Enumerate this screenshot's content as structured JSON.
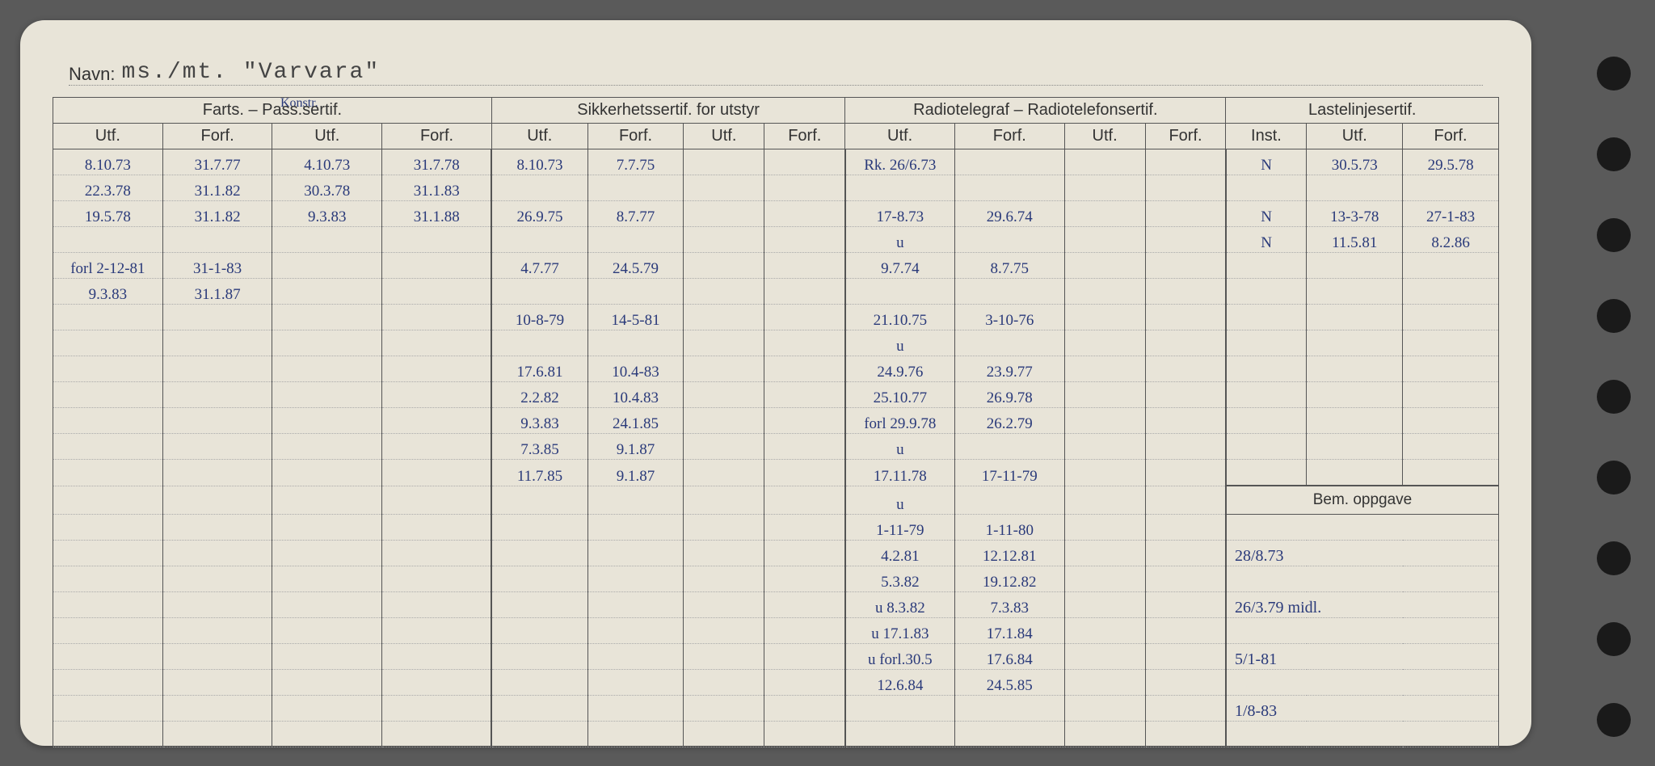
{
  "navn_label": "Navn:",
  "navn_value": "ms./mt. \"Varvara\"",
  "annotation_konstr": "Konstr.",
  "groups": {
    "farts": "Farts. – Pass.sertif.",
    "sikkerhet": "Sikkerhetssertif. for utstyr",
    "radio": "Radiotelegraf – Radiotelefonsertif.",
    "laste": "Lastelinjesertif."
  },
  "sub": {
    "utf": "Utf.",
    "forf": "Forf.",
    "inst": "Inst."
  },
  "bem_label": "Bem. oppgave",
  "rows": [
    {
      "c0": "8.10.73",
      "c1": "31.7.77",
      "c2": "4.10.73",
      "c3": "31.7.78",
      "c4": "8.10.73",
      "c5": "7.7.75",
      "c6": "",
      "c7": "",
      "c8": "Rk. 26/6.73",
      "c9": "",
      "c10": "",
      "c11": "",
      "c12": "N",
      "c13": "30.5.73",
      "c14": "29.5.78"
    },
    {
      "c0": "22.3.78",
      "c1": "31.1.82",
      "c2": "30.3.78",
      "c3": "31.1.83",
      "c4": "",
      "c5": "",
      "c6": "",
      "c7": "",
      "c8": "",
      "c9": "",
      "c10": "",
      "c11": "",
      "c12": "",
      "c13": "",
      "c14": ""
    },
    {
      "c0": "19.5.78",
      "c1": "31.1.82",
      "c2": "9.3.83",
      "c3": "31.1.88",
      "c4": "26.9.75",
      "c5": "8.7.77",
      "c6": "",
      "c7": "",
      "c8": "17-8.73",
      "c9": "29.6.74",
      "c10": "",
      "c11": "",
      "c12": "N",
      "c13": "13-3-78",
      "c14": "27-1-83"
    },
    {
      "c0": "",
      "c1": "",
      "c2": "",
      "c3": "",
      "c4": "",
      "c5": "",
      "c6": "",
      "c7": "",
      "c8": "u",
      "c9": "",
      "c10": "",
      "c11": "",
      "c12": "N",
      "c13": "11.5.81",
      "c14": "8.2.86"
    },
    {
      "c0": "forl 2-12-81",
      "c1": "31-1-83",
      "c2": "",
      "c3": "",
      "c4": "4.7.77",
      "c5": "24.5.79",
      "c6": "",
      "c7": "",
      "c8": "9.7.74",
      "c9": "8.7.75",
      "c10": "",
      "c11": "",
      "c12": "",
      "c13": "",
      "c14": ""
    },
    {
      "c0": "9.3.83",
      "c1": "31.1.87",
      "c2": "",
      "c3": "",
      "c4": "",
      "c5": "",
      "c6": "",
      "c7": "",
      "c8": "",
      "c9": "",
      "c10": "",
      "c11": "",
      "c12": "",
      "c13": "",
      "c14": ""
    },
    {
      "c0": "",
      "c1": "",
      "c2": "",
      "c3": "",
      "c4": "10-8-79",
      "c5": "14-5-81",
      "c6": "",
      "c7": "",
      "c8": "21.10.75",
      "c9": "3-10-76",
      "c10": "",
      "c11": "",
      "c12": "",
      "c13": "",
      "c14": ""
    },
    {
      "c0": "",
      "c1": "",
      "c2": "",
      "c3": "",
      "c4": "",
      "c5": "",
      "c6": "",
      "c7": "",
      "c8": "u",
      "c9": "",
      "c10": "",
      "c11": "",
      "c12": "",
      "c13": "",
      "c14": ""
    },
    {
      "c0": "",
      "c1": "",
      "c2": "",
      "c3": "",
      "c4": "17.6.81",
      "c5": "10.4-83",
      "c6": "",
      "c7": "",
      "c8": "24.9.76",
      "c9": "23.9.77",
      "c10": "",
      "c11": "",
      "c12": "",
      "c13": "",
      "c14": ""
    },
    {
      "c0": "",
      "c1": "",
      "c2": "",
      "c3": "",
      "c4": "2.2.82",
      "c5": "10.4.83",
      "c6": "",
      "c7": "",
      "c8": "25.10.77",
      "c9": "26.9.78",
      "c10": "",
      "c11": "",
      "c12": "",
      "c13": "",
      "c14": ""
    },
    {
      "c0": "",
      "c1": "",
      "c2": "",
      "c3": "",
      "c4": "9.3.83",
      "c5": "24.1.85",
      "c6": "",
      "c7": "",
      "c8": "forl 29.9.78",
      "c9": "26.2.79",
      "c10": "",
      "c11": "",
      "c12": "",
      "c13": "",
      "c14": ""
    },
    {
      "c0": "",
      "c1": "",
      "c2": "",
      "c3": "",
      "c4": "7.3.85",
      "c5": "9.1.87",
      "c6": "",
      "c7": "",
      "c8": "u",
      "c9": "",
      "c10": "",
      "c11": "",
      "c12": "",
      "c13": "",
      "c14": ""
    },
    {
      "c0": "",
      "c1": "",
      "c2": "",
      "c3": "",
      "c4": "11.7.85",
      "c5": "9.1.87",
      "c6": "",
      "c7": "",
      "c8": "17.11.78",
      "c9": "17-11-79",
      "c10": "",
      "c11": "",
      "c12": "",
      "c13": "",
      "c14": ""
    },
    {
      "c0": "",
      "c1": "",
      "c2": "",
      "c3": "",
      "c4": "",
      "c5": "",
      "c6": "",
      "c7": "",
      "c8": "u",
      "c9": "",
      "c10": "",
      "c11": "",
      "c12": ""
    },
    {
      "c0": "",
      "c1": "",
      "c2": "",
      "c3": "",
      "c4": "",
      "c5": "",
      "c6": "",
      "c7": "",
      "c8": "1-11-79",
      "c9": "1-11-80",
      "c10": "",
      "c11": "",
      "c12": ""
    },
    {
      "c0": "",
      "c1": "",
      "c2": "",
      "c3": "",
      "c4": "",
      "c5": "",
      "c6": "",
      "c7": "",
      "c8": "4.2.81",
      "c9": "12.12.81",
      "c10": "",
      "c11": "",
      "bem": "28/8.73"
    },
    {
      "c0": "",
      "c1": "",
      "c2": "",
      "c3": "",
      "c4": "",
      "c5": "",
      "c6": "",
      "c7": "",
      "c8": "5.3.82",
      "c9": "19.12.82",
      "c10": "",
      "c11": "",
      "bem": ""
    },
    {
      "c0": "",
      "c1": "",
      "c2": "",
      "c3": "",
      "c4": "",
      "c5": "",
      "c6": "",
      "c7": "",
      "c8": "u 8.3.82",
      "c9": "7.3.83",
      "c10": "",
      "c11": "",
      "bem": "26/3.79 midl."
    },
    {
      "c0": "",
      "c1": "",
      "c2": "",
      "c3": "",
      "c4": "",
      "c5": "",
      "c6": "",
      "c7": "",
      "c8": "u 17.1.83",
      "c9": "17.1.84",
      "c10": "",
      "c11": "",
      "bem": ""
    },
    {
      "c0": "",
      "c1": "",
      "c2": "",
      "c3": "",
      "c4": "",
      "c5": "",
      "c6": "",
      "c7": "",
      "c8": "u forl.30.5",
      "c9": "17.6.84",
      "c10": "",
      "c11": "",
      "bem": "5/1-81"
    },
    {
      "c0": "",
      "c1": "",
      "c2": "",
      "c3": "",
      "c4": "",
      "c5": "",
      "c6": "",
      "c7": "",
      "c8": "12.6.84",
      "c9": "24.5.85",
      "c10": "",
      "c11": "",
      "bem": ""
    },
    {
      "c0": "",
      "c1": "",
      "c2": "",
      "c3": "",
      "c4": "",
      "c5": "",
      "c6": "",
      "c7": "",
      "c8": "",
      "c9": "",
      "c10": "",
      "c11": "",
      "bem": "1/8-83"
    },
    {
      "c0": "",
      "c1": "",
      "c2": "",
      "c3": "",
      "c4": "",
      "c5": "",
      "c6": "",
      "c7": "",
      "c8": "",
      "c9": "",
      "c10": "",
      "c11": "",
      "bem": ""
    }
  ],
  "colors": {
    "paper": "#e8e4d8",
    "ink": "#2a3a7a",
    "line": "#555555",
    "dotted": "#aaaaaa",
    "bg": "#5a5a5a"
  },
  "colwidths_pct": [
    7.2,
    7.2,
    7.2,
    7.2,
    6.3,
    6.3,
    5.3,
    5.3,
    7.2,
    7.2,
    5.3,
    5.3,
    5.3,
    6.3,
    6.3
  ]
}
